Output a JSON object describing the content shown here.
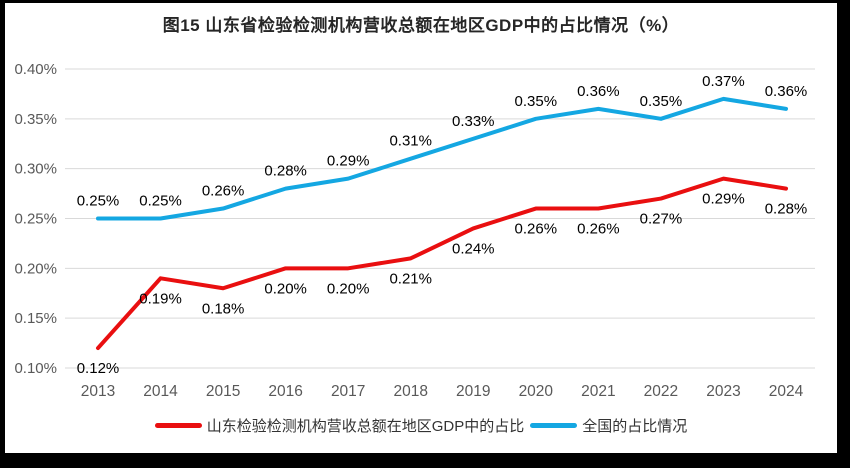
{
  "title": "图15  山东省检验检测机构营收总额在地区GDP中的占比情况（%）",
  "chart_data": {
    "type": "line",
    "title": "图15  山东省检验检测机构营收总额在地区GDP中的占比情况（%）",
    "categories": [
      "2013",
      "2014",
      "2015",
      "2016",
      "2017",
      "2018",
      "2019",
      "2020",
      "2021",
      "2022",
      "2023",
      "2024"
    ],
    "series": [
      {
        "name": "山东检验检测机构营收总额在地区GDP中的占比",
        "color": "#E90F10",
        "values": [
          0.12,
          0.19,
          0.18,
          0.2,
          0.2,
          0.21,
          0.24,
          0.26,
          0.26,
          0.27,
          0.29,
          0.28
        ],
        "labels": [
          "0.12%",
          "0.19%",
          "0.18%",
          "0.20%",
          "0.20%",
          "0.21%",
          "0.24%",
          "0.26%",
          "0.26%",
          "0.27%",
          "0.29%",
          "0.28%"
        ],
        "label_position": "below"
      },
      {
        "name": "全国的占比情况",
        "color": "#14A7E2",
        "values": [
          0.25,
          0.25,
          0.26,
          0.28,
          0.29,
          0.31,
          0.33,
          0.35,
          0.36,
          0.35,
          0.37,
          0.36
        ],
        "labels": [
          "0.25%",
          "0.25%",
          "0.26%",
          "0.28%",
          "0.29%",
          "0.31%",
          "0.33%",
          "0.35%",
          "0.36%",
          "0.35%",
          "0.37%",
          "0.36%"
        ],
        "label_position": "above"
      }
    ],
    "ylim": [
      0.1,
      0.4
    ],
    "yticks": [
      {
        "value": 0.4,
        "label": "0.40%"
      },
      {
        "value": 0.35,
        "label": "0.35%"
      },
      {
        "value": 0.3,
        "label": "0.30%"
      },
      {
        "value": 0.25,
        "label": "0.25%"
      },
      {
        "value": 0.2,
        "label": "0.20%"
      },
      {
        "value": 0.15,
        "label": "0.15%"
      },
      {
        "value": 0.1,
        "label": "0.10%"
      }
    ],
    "grid": true,
    "legend_position": "bottom",
    "gridline_color": "#D9D9D9",
    "axis_label_color": "#595959",
    "data_label_color": "#000000",
    "background_color": "#FFFFFF",
    "frame_color": "#000000"
  }
}
